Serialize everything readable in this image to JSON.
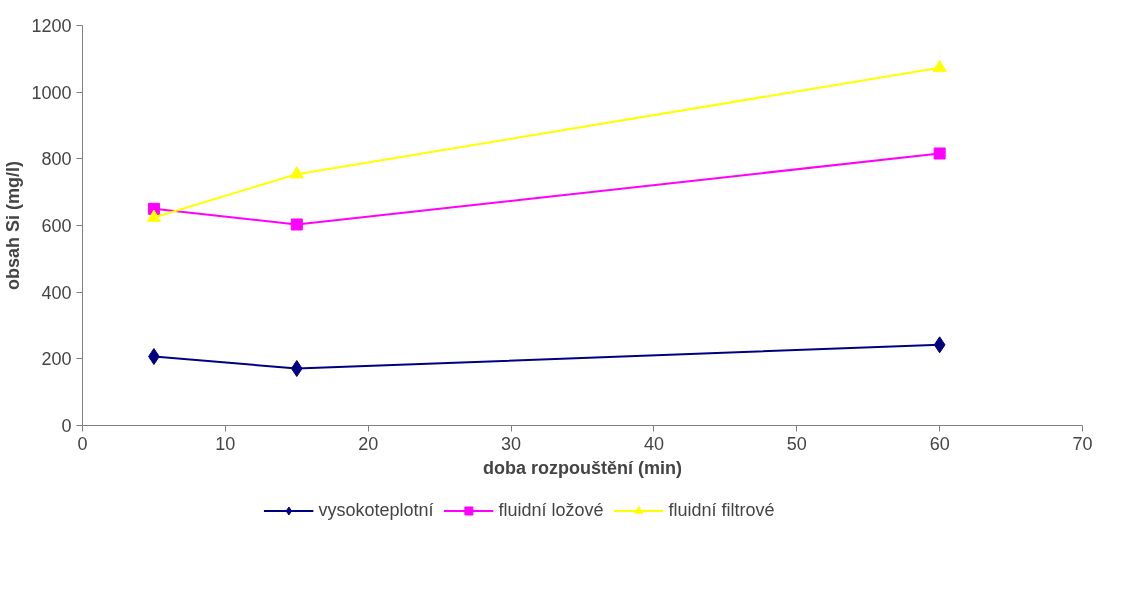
{
  "chart_data": {
    "type": "line",
    "xlabel": "doba rozpouštění (min)",
    "ylabel": "obsah Si (mg/l)",
    "x": [
      5,
      15,
      60
    ],
    "series": [
      {
        "name": "vysokoteplotní",
        "color": "#000080",
        "marker": "diamond",
        "values": [
          207,
          171,
          242
        ]
      },
      {
        "name": "fluidní ložové",
        "color": "#ff00ff",
        "marker": "square",
        "values": [
          650,
          603,
          816
        ]
      },
      {
        "name": "fluidní filtrové",
        "color": "#ffff00",
        "marker": "triangle",
        "values": [
          624,
          754,
          1073
        ]
      }
    ],
    "xlim": [
      0,
      70
    ],
    "xticks": [
      0,
      10,
      20,
      30,
      40,
      50,
      60,
      70
    ],
    "ylim": [
      0,
      1200
    ],
    "yticks": [
      0,
      200,
      400,
      600,
      800,
      1000,
      1200
    ],
    "grid": false,
    "legend": "bottom",
    "line_style": "solid"
  }
}
